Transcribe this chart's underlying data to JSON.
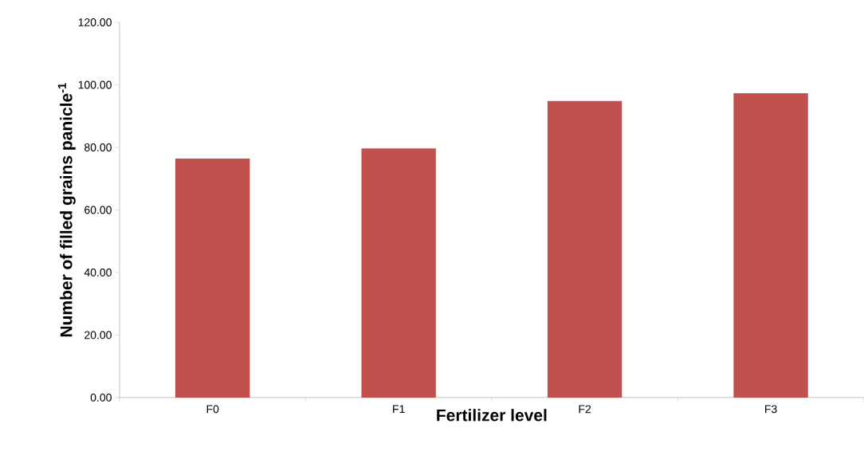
{
  "chart_data": {
    "type": "bar",
    "xlabel": "Fertilizer level",
    "ylabel": "Number of filled grains panicle$^{-1}$",
    "categories": [
      "F0",
      "F1",
      "F2",
      "F3"
    ],
    "values": [
      76.4,
      79.7,
      94.8,
      97.3
    ],
    "color": "#c0504d",
    "ylim": [
      0,
      120
    ],
    "yticks": [
      {
        "value": 0,
        "label": "0.00"
      },
      {
        "value": 20,
        "label": "20.00"
      },
      {
        "value": 40,
        "label": "40.00"
      },
      {
        "value": 60,
        "label": "60.00"
      },
      {
        "value": 80,
        "label": "80.00"
      },
      {
        "value": 100,
        "label": "100.00"
      },
      {
        "value": 120,
        "label": "120.00"
      }
    ],
    "grid": false
  }
}
